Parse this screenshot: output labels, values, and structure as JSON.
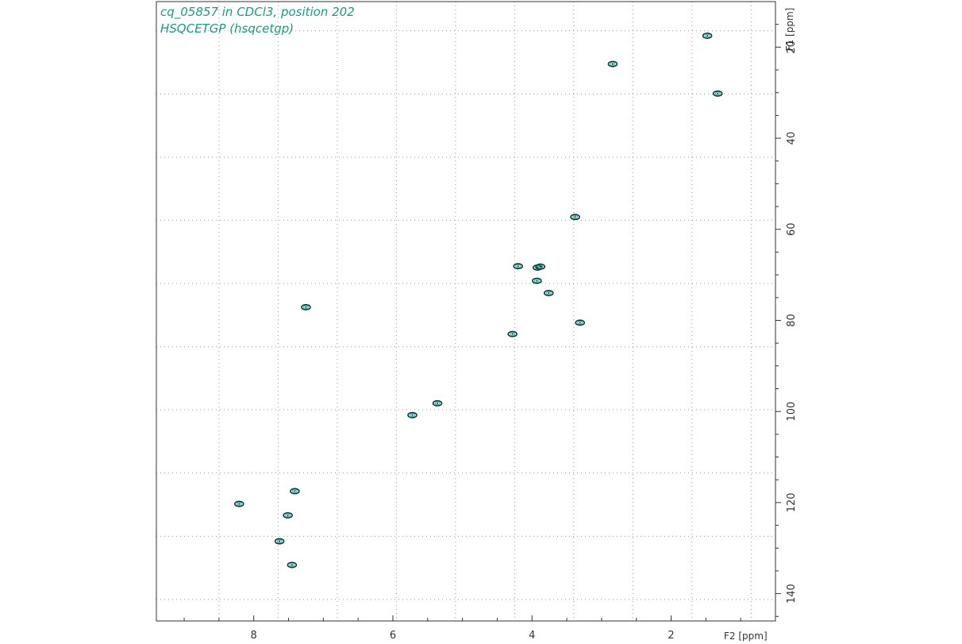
{
  "title_lines": [
    "cq_05857 in CDCl3, position 202",
    "HSQCETGP (hsqcetgp)"
  ],
  "colors": {
    "title": "#1a9a82",
    "axis": "#333333",
    "grid": "#9a9a9a",
    "contour": "#0a3d3a",
    "contour_inner": "#2aa8a0"
  },
  "chart_data": {
    "type": "scatter",
    "xlabel": "F2 [ppm]",
    "ylabel": "F1 [ppm]",
    "xlim": [
      9.4,
      0.5
    ],
    "ylim": [
      10,
      146
    ],
    "x_ticks": [
      8,
      6,
      4,
      2
    ],
    "y_ticks": [
      20,
      40,
      60,
      80,
      100,
      120,
      140
    ],
    "x_grid": [
      8.5,
      7.65,
      6.8,
      5.95,
      5.1,
      4.25,
      3.4,
      2.55,
      1.7,
      0.85
    ],
    "y_grid": [
      16.4,
      30.3,
      44.2,
      58.0,
      71.9,
      85.8,
      99.6,
      113.5,
      127.4,
      141.3
    ],
    "grid": true,
    "peaks": [
      {
        "x": 1.48,
        "y": 17.5
      },
      {
        "x": 2.84,
        "y": 23.7
      },
      {
        "x": 1.33,
        "y": 30.2
      },
      {
        "x": 3.38,
        "y": 57.3
      },
      {
        "x": 4.2,
        "y": 68.1
      },
      {
        "x": 3.92,
        "y": 68.4
      },
      {
        "x": 3.88,
        "y": 68.2
      },
      {
        "x": 3.93,
        "y": 71.3
      },
      {
        "x": 3.76,
        "y": 74.0
      },
      {
        "x": 7.25,
        "y": 77.1
      },
      {
        "x": 3.31,
        "y": 80.5
      },
      {
        "x": 4.28,
        "y": 83.0
      },
      {
        "x": 5.36,
        "y": 98.2
      },
      {
        "x": 5.72,
        "y": 100.8
      },
      {
        "x": 7.41,
        "y": 117.5
      },
      {
        "x": 8.21,
        "y": 120.3
      },
      {
        "x": 7.51,
        "y": 122.8
      },
      {
        "x": 7.63,
        "y": 128.5
      },
      {
        "x": 7.45,
        "y": 133.7
      }
    ]
  }
}
